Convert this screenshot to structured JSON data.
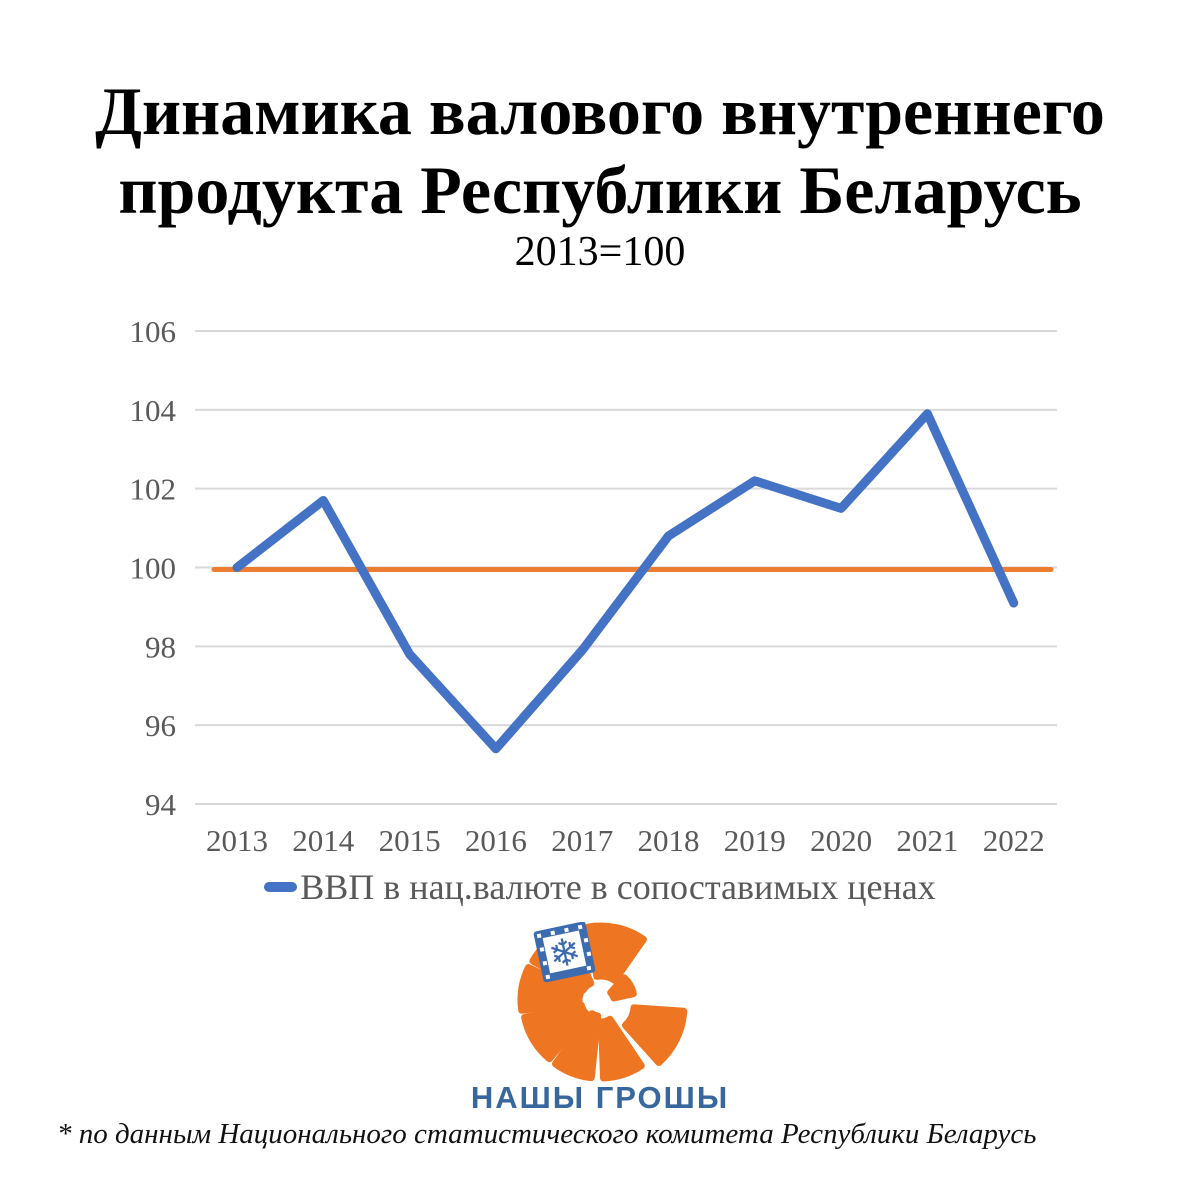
{
  "title": {
    "lines": [
      "Динамика валового внутреннего",
      "продукта Республики Беларусь"
    ],
    "subtitle": "2013=100"
  },
  "chart_data": {
    "type": "line",
    "title": "Динамика валового внутреннего продукта Республики Беларусь",
    "subtitle": "2013=100",
    "categories": [
      "2013",
      "2014",
      "2015",
      "2016",
      "2017",
      "2018",
      "2019",
      "2020",
      "2021",
      "2022"
    ],
    "series": [
      {
        "name": "ВВП в нац.валюте в сопоставимых ценах",
        "color": "#4472C4",
        "values": [
          100,
          101.7,
          97.8,
          95.4,
          97.9,
          100.8,
          102.2,
          101.5,
          103.9,
          99.1
        ]
      }
    ],
    "reference_line": {
      "value": 99.95,
      "color": "#ED7D31"
    },
    "ylim": [
      94,
      106
    ],
    "yticks": [
      94,
      96,
      98,
      100,
      102,
      104,
      106
    ],
    "grid": true,
    "gridline_color": "#D9D9D9",
    "tick_color": "#595959",
    "legend_position": "bottom"
  },
  "legend": {
    "marker_color": "#4472C4",
    "label": "ВВП в нац.валюте в сопоставимых ценах"
  },
  "logo": {
    "name": "НАШЫ ГРОШЫ",
    "orange": "#EE7623",
    "blue": "#3D6BB0",
    "text_color": "#38679E"
  },
  "footnote": "* по данным Национального статистического комитета Республики Беларусь"
}
